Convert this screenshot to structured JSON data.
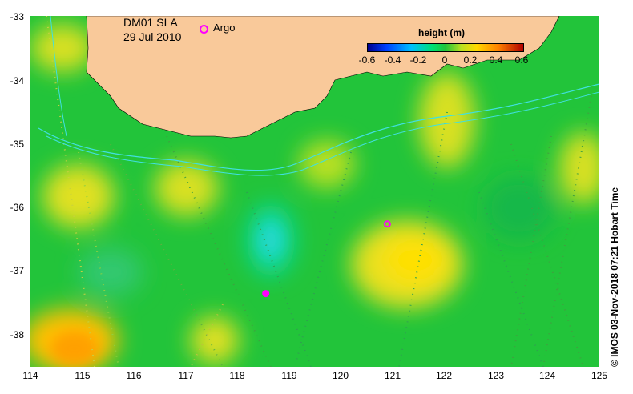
{
  "title": {
    "line1": "DM01 SLA",
    "line2": "29 Jul 2010"
  },
  "argo_label": "Argo",
  "legend": {
    "title": "height (m)",
    "ticks": [
      "-0.6",
      "-0.4",
      "-0.2",
      "0",
      "0.2",
      "0.4",
      "0.6"
    ],
    "colors": [
      "#00008f",
      "#0040ff",
      "#00c0ff",
      "#00e070",
      "#22c43a",
      "#b8e020",
      "#ffd800",
      "#ff8000",
      "#b00000"
    ]
  },
  "axes": {
    "y_ticks": [
      "-33",
      "-34",
      "-35",
      "-36",
      "-37",
      "-38"
    ],
    "x_ticks": [
      "114",
      "115",
      "116",
      "117",
      "118",
      "119",
      "120",
      "121",
      "122",
      "123",
      "124",
      "125"
    ]
  },
  "credit": "© IMOS 03-Nov-2018 07:21 Hobart Time",
  "colors": {
    "land": "#f9c99a",
    "ocean_base": "#22c43a",
    "argo": "#ff00ff",
    "contour": "#40e0e0"
  },
  "argo_floats": [
    {
      "lon": 120.9,
      "lat": -36.16
    },
    {
      "lon": 118.55,
      "lat": -37.3
    }
  ]
}
